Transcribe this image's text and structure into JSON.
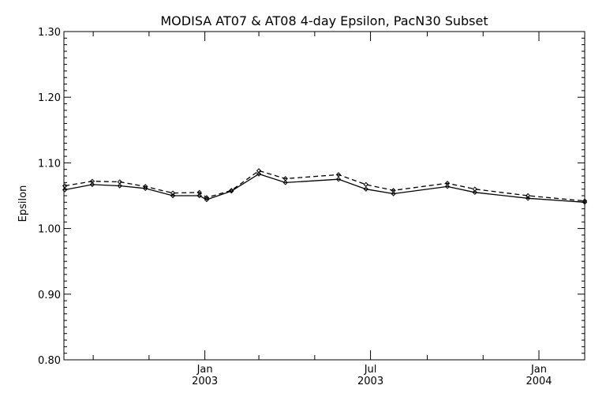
{
  "chart_data": {
    "type": "line",
    "title": "MODISA AT07 & AT08 4-day Epsilon, PacN30 Subset",
    "xlabel": "",
    "ylabel": "Epsilon",
    "xlim": [
      "2002-07-31",
      "2004-02-20"
    ],
    "ylim": [
      0.8,
      1.3
    ],
    "grid": false,
    "legend": "none",
    "y_ticks": [
      "0.80",
      "0.90",
      "1.00",
      "1.10",
      "1.20",
      "1.30"
    ],
    "x_ticks": [
      {
        "date": "2003-01-01",
        "line1": "Jan",
        "line2": "2003"
      },
      {
        "date": "2003-07-01",
        "line1": "Jul",
        "line2": "2003"
      },
      {
        "date": "2004-01-01",
        "line1": "Jan",
        "line2": "2004"
      }
    ],
    "x_minor_tick_dates": [
      "2002-09-01",
      "2002-11-01",
      "2003-03-01",
      "2003-05-01",
      "2003-09-01",
      "2003-11-01"
    ],
    "series": [
      {
        "style": "solid",
        "color": "#000000",
        "points": [
          {
            "x": "2002-08-01",
            "y": 1.059
          },
          {
            "x": "2002-08-31",
            "y": 1.067
          },
          {
            "x": "2002-09-30",
            "y": 1.065
          },
          {
            "x": "2002-10-28",
            "y": 1.061
          },
          {
            "x": "2002-11-27",
            "y": 1.05
          },
          {
            "x": "2002-12-26",
            "y": 1.05
          },
          {
            "x": "2003-01-03",
            "y": 1.044
          },
          {
            "x": "2003-01-30",
            "y": 1.057
          },
          {
            "x": "2003-03-01",
            "y": 1.083
          },
          {
            "x": "2003-03-30",
            "y": 1.07
          },
          {
            "x": "2003-05-27",
            "y": 1.075
          },
          {
            "x": "2003-06-26",
            "y": 1.06
          },
          {
            "x": "2003-07-26",
            "y": 1.053
          },
          {
            "x": "2003-09-23",
            "y": 1.064
          },
          {
            "x": "2003-10-23",
            "y": 1.055
          },
          {
            "x": "2003-12-20",
            "y": 1.046
          },
          {
            "x": "2004-02-20",
            "y": 1.04
          }
        ]
      },
      {
        "style": "dashed",
        "color": "#000000",
        "points": [
          {
            "x": "2002-08-01",
            "y": 1.065
          },
          {
            "x": "2002-08-31",
            "y": 1.072
          },
          {
            "x": "2002-09-30",
            "y": 1.071
          },
          {
            "x": "2002-10-28",
            "y": 1.064
          },
          {
            "x": "2002-11-27",
            "y": 1.054
          },
          {
            "x": "2002-12-26",
            "y": 1.055
          },
          {
            "x": "2003-01-03",
            "y": 1.047
          },
          {
            "x": "2003-01-30",
            "y": 1.058
          },
          {
            "x": "2003-03-01",
            "y": 1.088
          },
          {
            "x": "2003-03-30",
            "y": 1.076
          },
          {
            "x": "2003-05-27",
            "y": 1.082
          },
          {
            "x": "2003-06-26",
            "y": 1.067
          },
          {
            "x": "2003-07-26",
            "y": 1.058
          },
          {
            "x": "2003-09-23",
            "y": 1.069
          },
          {
            "x": "2003-10-23",
            "y": 1.06
          },
          {
            "x": "2003-12-20",
            "y": 1.05
          },
          {
            "x": "2004-02-20",
            "y": 1.042
          }
        ]
      }
    ]
  }
}
